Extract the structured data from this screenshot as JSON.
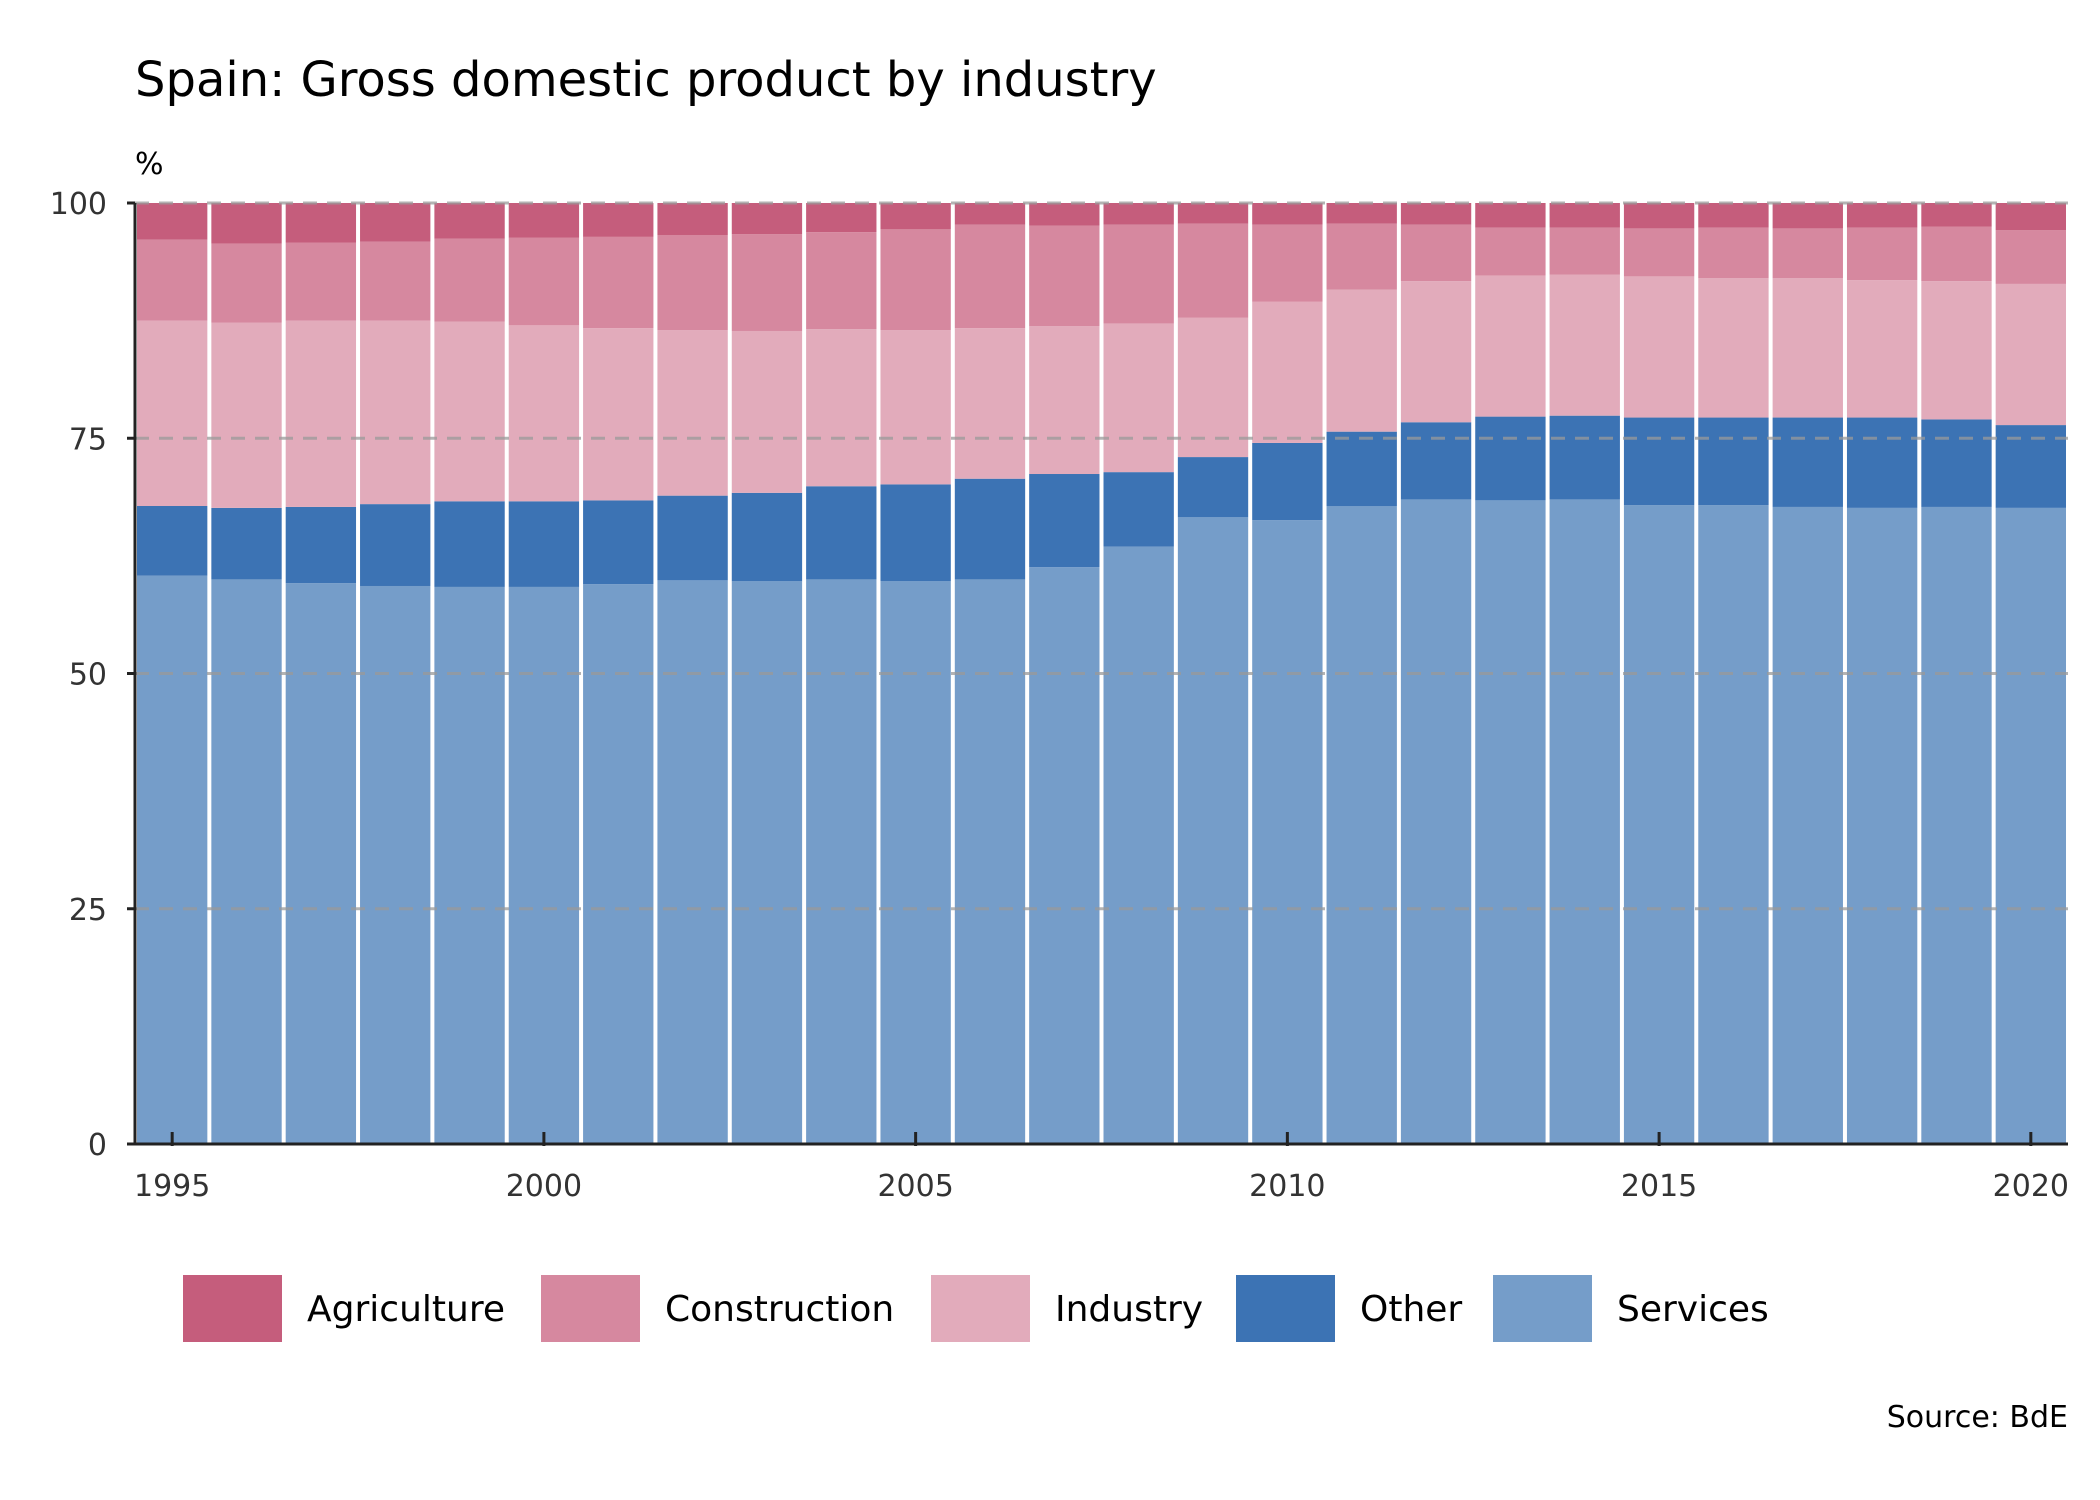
{
  "chart_data": {
    "type": "bar",
    "stacked": true,
    "title": "Spain: Gross domestic product by industry",
    "unit_label": "%",
    "source": "Source: BdE",
    "ylim": [
      0,
      100
    ],
    "y_ticks": [
      "0",
      "25",
      "50",
      "75",
      "100"
    ],
    "x_ticks": [
      "1995",
      "2000",
      "2005",
      "2010",
      "2015",
      "2020"
    ],
    "grid": "horizontal dashed",
    "legend_position": "bottom",
    "categories": [
      "1995",
      "1996",
      "1997",
      "1998",
      "1999",
      "2000",
      "2001",
      "2002",
      "2003",
      "2004",
      "2005",
      "2006",
      "2007",
      "2008",
      "2009",
      "2010",
      "2011",
      "2012",
      "2013",
      "2014",
      "2015",
      "2016",
      "2017",
      "2018",
      "2019",
      "2020"
    ],
    "series": [
      {
        "name": "Services",
        "color": "#759dc9",
        "values": [
          60.4,
          60.0,
          59.6,
          59.3,
          59.2,
          59.2,
          59.5,
          59.9,
          59.8,
          60.0,
          59.8,
          60.0,
          61.3,
          63.5,
          66.6,
          66.3,
          67.8,
          68.5,
          68.4,
          68.5,
          67.9,
          67.9,
          67.7,
          67.6,
          67.7,
          67.6
        ]
      },
      {
        "name": "Other",
        "color": "#3c73b4",
        "values": [
          7.4,
          7.6,
          8.1,
          8.7,
          9.1,
          9.1,
          8.9,
          9.0,
          9.4,
          9.9,
          10.3,
          10.7,
          9.9,
          7.9,
          6.4,
          8.2,
          7.9,
          8.2,
          8.9,
          8.9,
          9.3,
          9.3,
          9.5,
          9.6,
          9.3,
          8.8
        ]
      },
      {
        "name": "Industry",
        "color": "#e2abbb",
        "values": [
          19.7,
          19.7,
          19.8,
          19.5,
          19.1,
          18.7,
          18.3,
          17.6,
          17.2,
          16.7,
          16.4,
          16.0,
          15.7,
          15.8,
          14.8,
          15.0,
          15.1,
          15.0,
          15.0,
          15.0,
          15.0,
          14.8,
          14.8,
          14.6,
          14.7,
          15.0
        ]
      },
      {
        "name": "Construction",
        "color": "#d6889f",
        "values": [
          8.6,
          8.4,
          8.3,
          8.4,
          8.8,
          9.3,
          9.7,
          10.1,
          10.3,
          10.3,
          10.7,
          11.0,
          10.7,
          10.5,
          10.0,
          8.2,
          7.0,
          6.0,
          5.1,
          5.0,
          5.1,
          5.4,
          5.3,
          5.6,
          5.8,
          5.7
        ]
      },
      {
        "name": "Agriculture",
        "color": "#c55d7c",
        "values": [
          3.9,
          4.3,
          4.2,
          4.1,
          3.8,
          3.7,
          3.6,
          3.4,
          3.3,
          3.1,
          2.8,
          2.3,
          2.4,
          2.3,
          2.2,
          2.3,
          2.2,
          2.3,
          2.6,
          2.6,
          2.7,
          2.6,
          2.7,
          2.6,
          2.5,
          2.9
        ]
      }
    ],
    "legend_order": [
      "Agriculture",
      "Construction",
      "Industry",
      "Other",
      "Services"
    ]
  }
}
